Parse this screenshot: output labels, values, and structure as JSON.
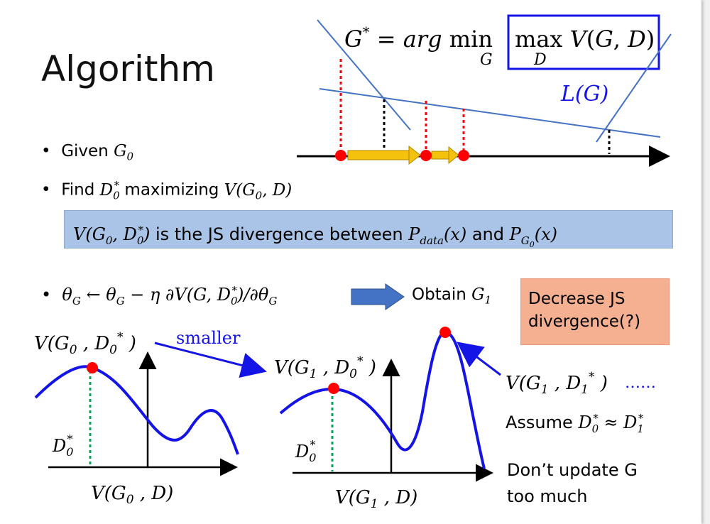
{
  "slide": {
    "title": "Algorithm",
    "formula": "G* = arg min_G max_D V(G, D)",
    "L_label": "L(G)",
    "bullets": [
      "Given G_0",
      "Find D_0^* maximizing V(G_0, D)"
    ],
    "highlight_box": "V(G_0, D_0^*) is the JS divergence between P_data(x) and P_G0(x)",
    "update_rule": "θ_G ← θ_G − η ∂V(G, D_0^*)/∂θ_G",
    "obtain": "Obtain G_1",
    "js_note": "Decrease JS divergence(?)",
    "left_plot": {
      "top_label": "V(G_0 , D_0^* )",
      "d_label": "D_0^*",
      "axis_label": "V(G_0 , D)"
    },
    "smaller": "smaller",
    "right_plot": {
      "top_label": "V(G_1 , D_0^* )",
      "d_label": "D_0^*",
      "axis_label": "V(G_1 , D)"
    },
    "peak_label": "V(G_1 , D_1^* )",
    "ellipsis": "……",
    "assume": "Assume D_0^* ≈ D_1^*",
    "dont_update": [
      "Don’t update G",
      "too much"
    ]
  },
  "colors": {
    "title": "#111111",
    "line_blue": "#4472c4",
    "curve_blue": "#1414e6",
    "dot_red": "#ff0000",
    "arrow_gold": "#f4c20d",
    "box_fill": "#a9c4e6",
    "note_fill": "#f4b091",
    "dashed_green": "#00a651"
  }
}
